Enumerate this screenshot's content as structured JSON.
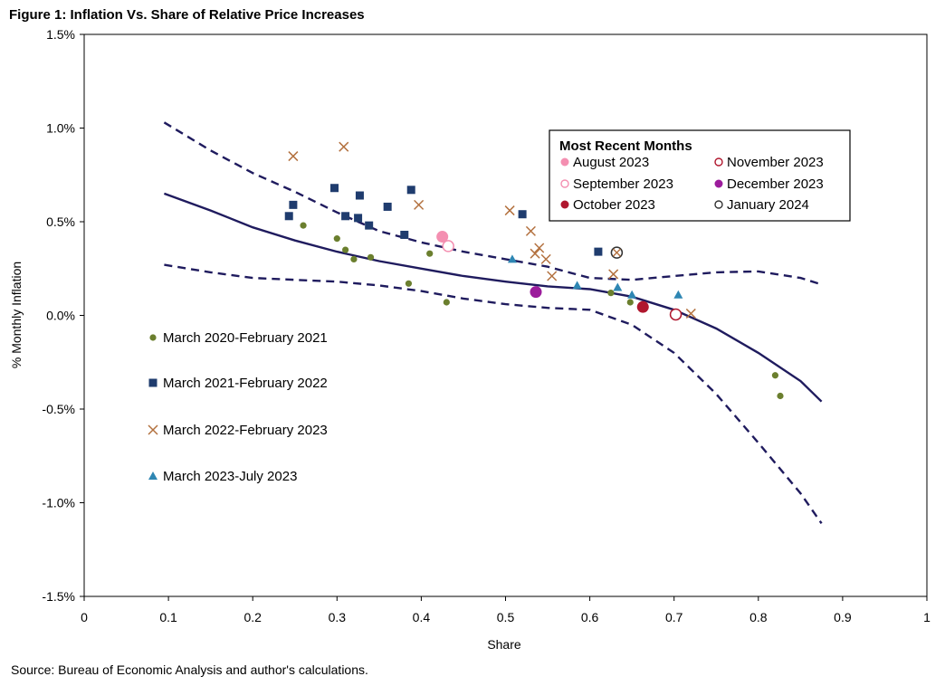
{
  "figure": {
    "title": "Figure 1: Inflation Vs. Share of Relative Price Increases",
    "source": "Source: Bureau of Economic Analysis and author's calculations."
  },
  "chart_data": {
    "type": "scatter",
    "xlabel": "Share",
    "ylabel": "% Monthly Inflation",
    "xlim": [
      0,
      1
    ],
    "ylim": [
      -1.5,
      1.5
    ],
    "x_ticks": [
      "0",
      "0.1",
      "0.2",
      "0.3",
      "0.4",
      "0.5",
      "0.6",
      "0.7",
      "0.8",
      "0.9",
      "1"
    ],
    "y_ticks": [
      "1.5%",
      "1.0%",
      "0.5%",
      "0.0%",
      "-0.5%",
      "-1.0%",
      "-1.5%"
    ],
    "grid": false,
    "colors": {
      "navy_line": "#1F1B5E",
      "olive": "#6B7F2E",
      "square_blue": "#1F3C6E",
      "cross_orange": "#B3713F",
      "triangle_blue": "#2E86B3",
      "aug": "#F48FB1",
      "sep": "#F48FB1",
      "oct": "#B0172E",
      "nov": "#B0172E",
      "dec": "#9C1C9C",
      "jan": "#333333"
    },
    "series": [
      {
        "name": "March 2020-February 2021",
        "marker": "circle",
        "points": [
          [
            0.26,
            0.48
          ],
          [
            0.3,
            0.41
          ],
          [
            0.31,
            0.35
          ],
          [
            0.32,
            0.3
          ],
          [
            0.34,
            0.31
          ],
          [
            0.385,
            0.17
          ],
          [
            0.41,
            0.33
          ],
          [
            0.43,
            0.07
          ],
          [
            0.625,
            0.12
          ],
          [
            0.648,
            0.07
          ],
          [
            0.82,
            -0.32
          ],
          [
            0.826,
            -0.43
          ]
        ]
      },
      {
        "name": "March 2021-February 2022",
        "marker": "square",
        "points": [
          [
            0.243,
            0.53
          ],
          [
            0.248,
            0.59
          ],
          [
            0.297,
            0.68
          ],
          [
            0.31,
            0.53
          ],
          [
            0.325,
            0.52
          ],
          [
            0.327,
            0.64
          ],
          [
            0.338,
            0.48
          ],
          [
            0.36,
            0.58
          ],
          [
            0.38,
            0.43
          ],
          [
            0.388,
            0.67
          ],
          [
            0.52,
            0.54
          ],
          [
            0.61,
            0.34
          ]
        ]
      },
      {
        "name": "March 2022-February 2023",
        "marker": "cross",
        "points": [
          [
            0.248,
            0.85
          ],
          [
            0.308,
            0.9
          ],
          [
            0.397,
            0.59
          ],
          [
            0.505,
            0.56
          ],
          [
            0.53,
            0.45
          ],
          [
            0.535,
            0.33
          ],
          [
            0.54,
            0.36
          ],
          [
            0.548,
            0.3
          ],
          [
            0.555,
            0.21
          ],
          [
            0.628,
            0.22
          ],
          [
            0.72,
            0.01
          ]
        ]
      },
      {
        "name": "March 2023-July 2023",
        "marker": "triangle",
        "points": [
          [
            0.508,
            0.3
          ],
          [
            0.585,
            0.16
          ],
          [
            0.633,
            0.15
          ],
          [
            0.65,
            0.11
          ],
          [
            0.705,
            0.11
          ]
        ]
      }
    ],
    "recent_months": {
      "title": "Most Recent Months",
      "items": [
        {
          "name": "August 2023",
          "x": 0.425,
          "y": 0.42,
          "style": "filled",
          "color": "#F48FB1"
        },
        {
          "name": "September 2023",
          "x": 0.432,
          "y": 0.37,
          "style": "open",
          "color": "#F48FB1"
        },
        {
          "name": "October 2023",
          "x": 0.663,
          "y": 0.045,
          "style": "filled",
          "color": "#B0172E"
        },
        {
          "name": "November 2023",
          "x": 0.702,
          "y": 0.005,
          "style": "open",
          "color": "#B0172E"
        },
        {
          "name": "December 2023",
          "x": 0.536,
          "y": 0.125,
          "style": "filled",
          "color": "#9C1C9C"
        },
        {
          "name": "January 2024",
          "x": 0.632,
          "y": 0.335,
          "style": "open",
          "color": "#333333"
        }
      ]
    },
    "fit_line": [
      [
        0.095,
        0.65
      ],
      [
        0.15,
        0.56
      ],
      [
        0.2,
        0.47
      ],
      [
        0.25,
        0.4
      ],
      [
        0.3,
        0.34
      ],
      [
        0.35,
        0.29
      ],
      [
        0.4,
        0.25
      ],
      [
        0.45,
        0.21
      ],
      [
        0.5,
        0.18
      ],
      [
        0.55,
        0.155
      ],
      [
        0.6,
        0.14
      ],
      [
        0.65,
        0.1
      ],
      [
        0.7,
        0.03
      ],
      [
        0.75,
        -0.07
      ],
      [
        0.8,
        -0.2
      ],
      [
        0.85,
        -0.35
      ],
      [
        0.875,
        -0.46
      ]
    ],
    "upper_band": [
      [
        0.095,
        1.03
      ],
      [
        0.15,
        0.88
      ],
      [
        0.2,
        0.76
      ],
      [
        0.25,
        0.66
      ],
      [
        0.3,
        0.55
      ],
      [
        0.35,
        0.45
      ],
      [
        0.4,
        0.39
      ],
      [
        0.45,
        0.34
      ],
      [
        0.5,
        0.3
      ],
      [
        0.55,
        0.26
      ],
      [
        0.6,
        0.2
      ],
      [
        0.65,
        0.19
      ],
      [
        0.7,
        0.21
      ],
      [
        0.75,
        0.23
      ],
      [
        0.8,
        0.235
      ],
      [
        0.85,
        0.2
      ],
      [
        0.875,
        0.165
      ]
    ],
    "lower_band": [
      [
        0.095,
        0.27
      ],
      [
        0.15,
        0.23
      ],
      [
        0.2,
        0.2
      ],
      [
        0.25,
        0.19
      ],
      [
        0.3,
        0.18
      ],
      [
        0.35,
        0.16
      ],
      [
        0.4,
        0.13
      ],
      [
        0.45,
        0.09
      ],
      [
        0.5,
        0.06
      ],
      [
        0.55,
        0.04
      ],
      [
        0.6,
        0.03
      ],
      [
        0.65,
        -0.05
      ],
      [
        0.7,
        -0.2
      ],
      [
        0.75,
        -0.42
      ],
      [
        0.8,
        -0.68
      ],
      [
        0.85,
        -0.95
      ],
      [
        0.875,
        -1.11
      ]
    ]
  }
}
